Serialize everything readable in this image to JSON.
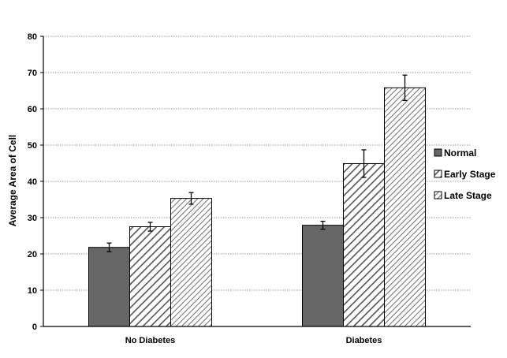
{
  "chart_data": {
    "type": "bar",
    "categories": [
      "No Diabetes",
      "Diabetes"
    ],
    "series": [
      {
        "name": "Normal",
        "values": [
          21.8,
          27.9
        ],
        "errors": [
          1.2,
          1.1
        ],
        "color": "#666666",
        "pattern": "solid"
      },
      {
        "name": "Early Stage",
        "values": [
          27.5,
          44.9
        ],
        "errors": [
          1.2,
          3.8
        ],
        "color": "#595959",
        "pattern": "diagonal-hatch"
      },
      {
        "name": "Late Stage",
        "values": [
          35.3,
          65.8
        ],
        "errors": [
          1.6,
          3.5
        ],
        "color": "#808080",
        "pattern": "diagonal-hatch-fine"
      }
    ],
    "ylabel": "Average Area of Cell",
    "xlabel": "",
    "ylim": [
      0,
      80
    ],
    "yticks": [
      0,
      10,
      20,
      30,
      40,
      50,
      60,
      70,
      80
    ],
    "grid": true,
    "legend_position": "right"
  }
}
